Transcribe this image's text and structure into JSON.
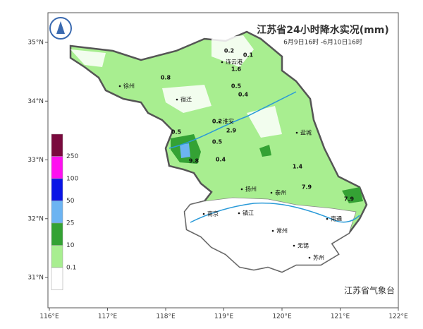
{
  "title": "江苏省24小时降水实况(mm)",
  "subtitle": "6月9日16时 -6月10日16时",
  "source": "江苏省气象台",
  "latitude_labels": [
    {
      "value": 35,
      "label": "35°N"
    },
    {
      "value": 34,
      "label": "34°N"
    },
    {
      "value": 33,
      "label": "33°N"
    },
    {
      "value": 32,
      "label": "32°N"
    },
    {
      "value": 31,
      "label": "31°N"
    }
  ],
  "longitude_labels": [
    {
      "value": 116,
      "label": "116°E"
    },
    {
      "value": 117,
      "label": "117°E"
    },
    {
      "value": 118,
      "label": "118°E"
    },
    {
      "value": 119,
      "label": "119°E"
    },
    {
      "value": 120,
      "label": "120°E"
    },
    {
      "value": 121,
      "label": "121°E"
    },
    {
      "value": 122,
      "label": "122°E"
    }
  ],
  "legend": {
    "levels": [
      250,
      100,
      50,
      25,
      10,
      0.1
    ],
    "colors": [
      "#7a0a3e",
      "#ff10f0",
      "#0a14e6",
      "#6cb4f2",
      "#34a234",
      "#a8ee90",
      "#ffffff"
    ]
  },
  "cities": [
    "徐州",
    "连云港",
    "宿迁",
    "淮安",
    "盐城",
    "扬州",
    "泰州",
    "南京",
    "镇江",
    "南通",
    "常州",
    "无锡",
    "苏州"
  ],
  "rainfall_labels": [
    0.2,
    0.1,
    1.6,
    0.8,
    0.5,
    0.4,
    0.2,
    2.9,
    0.5,
    0.5,
    9.8,
    0.4,
    1.4,
    7.9,
    7.9
  ]
}
